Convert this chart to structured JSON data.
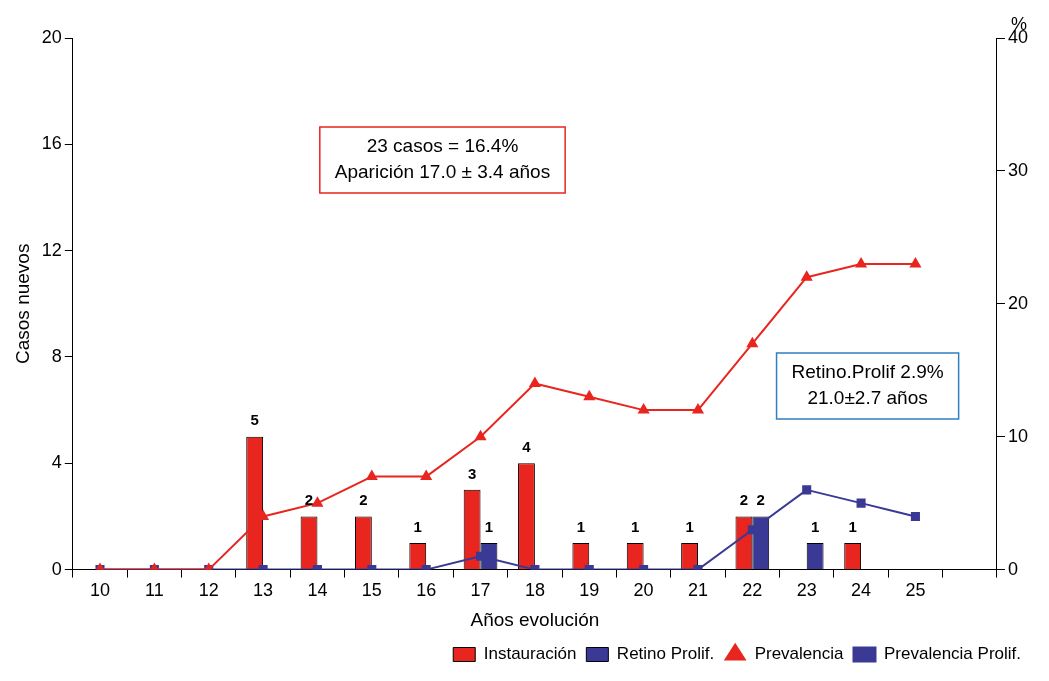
{
  "chart_data": {
    "type": "bar",
    "xlabel": "Años evolución",
    "ylabel": "Casos nuevos",
    "y2label": "%",
    "categories": [
      "10",
      "11",
      "12",
      "13",
      "14",
      "15",
      "16",
      "17",
      "18",
      "19",
      "20",
      "21",
      "22",
      "23",
      "24",
      "25",
      null
    ],
    "series": [
      {
        "name": "Instauración",
        "color": "#e8251f",
        "values": [
          null,
          null,
          null,
          5,
          2,
          2,
          1,
          3,
          4,
          1,
          1,
          1,
          2,
          null,
          1,
          null,
          null
        ],
        "value_labels": [
          null,
          null,
          null,
          "5",
          "2",
          "2",
          "1",
          "3",
          "4",
          "1",
          "1",
          "1",
          "2",
          null,
          "1",
          null,
          null
        ]
      },
      {
        "name": "Retino Prolif.",
        "color": "#3a3a96",
        "values": [
          null,
          null,
          null,
          null,
          null,
          null,
          null,
          1,
          null,
          null,
          null,
          null,
          2,
          1,
          null,
          null,
          null
        ],
        "value_labels": [
          null,
          null,
          null,
          null,
          null,
          null,
          null,
          "1",
          null,
          null,
          null,
          null,
          "2",
          "1",
          null,
          null,
          null
        ]
      },
      {
        "name": "Prevalencia",
        "type": "line",
        "axis": "y2",
        "marker": "triangle",
        "color": "#e8251f",
        "values": [
          0,
          0,
          0,
          4,
          5,
          7,
          7,
          10,
          14,
          13,
          12,
          12,
          17,
          22,
          23,
          23,
          null
        ]
      },
      {
        "name": "Prevalencia Prolif.",
        "type": "line",
        "axis": "y2",
        "marker": "square",
        "color": "#3a3a96",
        "values": [
          0,
          0,
          0,
          0,
          0,
          0,
          0,
          1,
          0,
          0,
          0,
          0,
          3,
          6,
          5,
          4,
          null
        ]
      }
    ],
    "ylim": [
      0,
      20
    ],
    "yticks": [
      0,
      4,
      8,
      12,
      16,
      20
    ],
    "y2lim": [
      0,
      40
    ],
    "y2ticks": [
      0,
      10,
      20,
      30,
      40
    ],
    "grid": false,
    "legend": "bottom right",
    "annotations": [
      "23 casos = 16.4%\nAparición 17.0 ± 3.4 años",
      "Retino.Prolif 2.9%\n21.0±2.7 años"
    ]
  }
}
